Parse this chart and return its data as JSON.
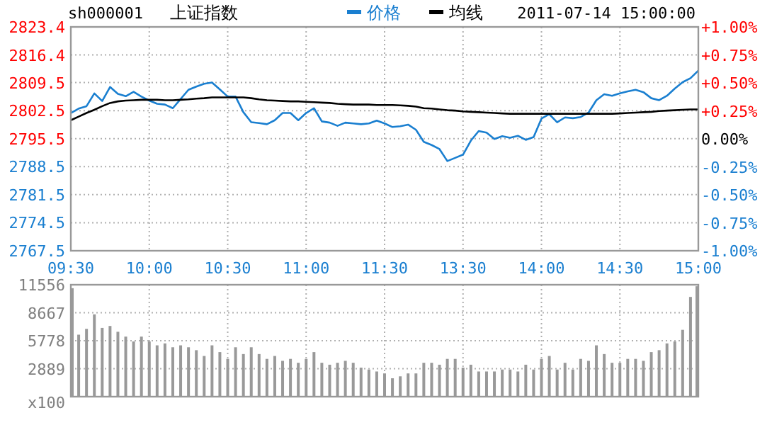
{
  "chart_data": [
    {
      "type": "line",
      "title": "上证指数",
      "subtitle": "sh000001",
      "annotations": [
        "2011-07-14 15:00:00"
      ],
      "legend": "top",
      "grid": true,
      "categories": [
        "09:30",
        null,
        null,
        null,
        null,
        null,
        null,
        null,
        null,
        null,
        "10:00",
        null,
        null,
        null,
        null,
        null,
        null,
        null,
        null,
        null,
        "10:30",
        null,
        null,
        null,
        null,
        null,
        null,
        null,
        null,
        null,
        "11:00",
        null,
        null,
        null,
        null,
        null,
        null,
        null,
        null,
        null,
        "11:30",
        null,
        null,
        null,
        null,
        null,
        null,
        null,
        null,
        null,
        "13:30",
        null,
        null,
        null,
        null,
        null,
        null,
        null,
        null,
        null,
        "14:00",
        null,
        null,
        null,
        null,
        null,
        null,
        null,
        null,
        null,
        "14:30",
        null,
        null,
        null,
        null,
        null,
        null,
        null,
        null,
        null,
        "15:00"
      ],
      "ylim": [
        2767.5,
        2823.4
      ],
      "yticks": [
        2767.5,
        2774.5,
        2781.5,
        2788.5,
        2795.5,
        2802.5,
        2809.5,
        2816.4,
        2823.4
      ],
      "y2lim": [
        -1,
        1
      ],
      "y2ticks": [
        {
          "value": -1,
          "label": "-1.00%"
        },
        {
          "value": -0.75,
          "label": "-0.75%"
        },
        {
          "value": -0.5,
          "label": "-0.50%"
        },
        {
          "value": -0.25,
          "label": "-0.25%"
        },
        {
          "value": 0,
          "label": "0.00%"
        },
        {
          "value": 0.25,
          "label": "+0.25%"
        },
        {
          "value": 0.5,
          "label": "+0.50%"
        },
        {
          "value": 0.75,
          "label": "+0.75%"
        },
        {
          "value": 1,
          "label": "+1.00%"
        }
      ],
      "series": [
        {
          "name": "价格",
          "color": "#1a7fd0",
          "values": [
            2801.9,
            2803.0,
            2803.6,
            2806.8,
            2804.9,
            2808.4,
            2806.7,
            2806.1,
            2807.2,
            2806.0,
            2805.0,
            2804.2,
            2804.0,
            2803.1,
            2805.4,
            2807.7,
            2808.5,
            2809.2,
            2809.5,
            2807.8,
            2806.0,
            2806.0,
            2802.1,
            2799.6,
            2799.4,
            2799.1,
            2800.1,
            2801.9,
            2801.9,
            2800.1,
            2801.9,
            2803.1,
            2799.8,
            2799.5,
            2798.7,
            2799.5,
            2799.3,
            2799.1,
            2799.3,
            2800.0,
            2799.3,
            2798.4,
            2798.6,
            2799.0,
            2797.7,
            2794.7,
            2793.9,
            2792.9,
            2789.9,
            2790.7,
            2791.5,
            2795.0,
            2797.4,
            2797.0,
            2795.4,
            2796.1,
            2795.7,
            2796.2,
            2795.2,
            2795.9,
            2800.5,
            2801.6,
            2799.6,
            2800.8,
            2800.6,
            2800.9,
            2802.0,
            2805.1,
            2806.6,
            2806.2,
            2806.8,
            2807.3,
            2807.7,
            2807.1,
            2805.6,
            2805.1,
            2806.2,
            2808.0,
            2809.6,
            2810.6,
            2812.5
          ]
        },
        {
          "name": "均线",
          "color": "#000000",
          "values": [
            2800.1,
            2801.0,
            2801.9,
            2802.7,
            2803.6,
            2804.4,
            2804.8,
            2805.0,
            2805.1,
            2805.2,
            2805.2,
            2805.2,
            2805.1,
            2805.1,
            2805.2,
            2805.3,
            2805.5,
            2805.6,
            2805.8,
            2805.8,
            2805.8,
            2805.8,
            2805.8,
            2805.6,
            2805.3,
            2805.1,
            2805.0,
            2804.9,
            2804.8,
            2804.8,
            2804.7,
            2804.6,
            2804.5,
            2804.4,
            2804.2,
            2804.1,
            2804.0,
            2804.0,
            2804.0,
            2803.9,
            2803.9,
            2803.9,
            2803.8,
            2803.7,
            2803.5,
            2803.1,
            2803.0,
            2802.8,
            2802.6,
            2802.5,
            2802.3,
            2802.2,
            2802.1,
            2802.0,
            2801.9,
            2801.8,
            2801.7,
            2801.7,
            2801.7,
            2801.7,
            2801.7,
            2801.7,
            2801.7,
            2801.7,
            2801.7,
            2801.7,
            2801.7,
            2801.7,
            2801.7,
            2801.7,
            2801.8,
            2801.9,
            2802.0,
            2802.1,
            2802.2,
            2802.4,
            2802.5,
            2802.6,
            2802.7,
            2802.8,
            2802.8
          ]
        }
      ]
    },
    {
      "type": "bar",
      "ylabel": "x100",
      "grid": true,
      "tick_labels": "y",
      "color": "#999999",
      "categories": [
        null,
        null,
        null,
        null,
        null,
        null,
        null,
        null,
        null,
        null,
        null,
        null,
        null,
        null,
        null,
        null,
        null,
        null,
        null,
        null,
        null,
        null,
        null,
        null,
        null,
        null,
        null,
        null,
        null,
        null,
        null,
        null,
        null,
        null,
        null,
        null,
        null,
        null,
        null,
        null,
        null,
        null,
        null,
        null,
        null,
        null,
        null,
        null,
        null,
        null,
        null,
        null,
        null,
        null,
        null,
        null,
        null,
        null,
        null,
        null,
        null,
        null,
        null,
        null,
        null,
        null,
        null,
        null,
        null,
        null,
        null,
        null,
        null,
        null,
        null,
        null,
        null,
        null,
        null,
        null,
        null
      ],
      "ylim": [
        0,
        11556
      ],
      "yticks": [
        2889,
        5778,
        8667,
        11556
      ],
      "values": [
        11200,
        6400,
        7000,
        8500,
        7100,
        7300,
        6700,
        6200,
        5700,
        6200,
        5700,
        5300,
        5500,
        5100,
        5300,
        5100,
        4800,
        4200,
        5300,
        4600,
        3900,
        5100,
        4400,
        5100,
        4400,
        3900,
        4200,
        3700,
        3900,
        3500,
        3900,
        4600,
        3500,
        3300,
        3500,
        3700,
        3500,
        3000,
        2800,
        2600,
        2400,
        1900,
        2100,
        2400,
        2400,
        3500,
        3500,
        3300,
        3900,
        3900,
        3000,
        3300,
        2600,
        2600,
        2600,
        2800,
        2800,
        2600,
        3300,
        2800,
        3900,
        4200,
        2800,
        3500,
        2800,
        3900,
        3700,
        5300,
        4400,
        3500,
        3500,
        3900,
        3900,
        3700,
        4600,
        4800,
        5500,
        5700,
        6900,
        10300,
        11400
      ]
    }
  ]
}
